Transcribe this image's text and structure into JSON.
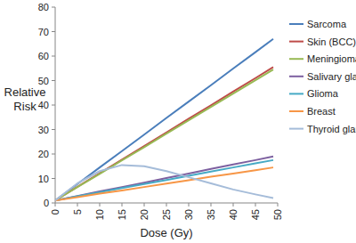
{
  "chart_data": {
    "type": "line",
    "x_label": "Dose (Gy)",
    "y_label": "Relative Risk",
    "x": [
      0,
      5,
      10,
      15,
      20,
      25,
      30,
      35,
      40,
      45,
      49
    ],
    "xlim": [
      0,
      50
    ],
    "xticks": [
      0,
      5,
      10,
      15,
      20,
      25,
      30,
      35,
      40,
      45,
      50
    ],
    "ylim": [
      0,
      80
    ],
    "yticks": [
      0,
      10,
      20,
      30,
      40,
      50,
      60,
      70,
      80
    ],
    "grid": false,
    "legend": "right",
    "series": [
      {
        "name": "Sarcoma",
        "color": "#4a7ebb",
        "values": [
          1,
          7.7,
          14.5,
          21.2,
          27.9,
          34.7,
          41.4,
          48.1,
          54.9,
          61.6,
          67
        ]
      },
      {
        "name": "Skin (BCC)",
        "color": "#be4b48",
        "values": [
          1,
          6.6,
          12.1,
          17.7,
          23.2,
          28.8,
          34.4,
          39.9,
          45.5,
          51,
          55.5
        ]
      },
      {
        "name": "Meningioma",
        "color": "#98b954",
        "values": [
          1,
          6.5,
          11.9,
          17.4,
          22.8,
          28.3,
          33.8,
          39.2,
          44.7,
          50.1,
          54.5
        ]
      },
      {
        "name": "Salivary gland",
        "color": "#7d60a0",
        "values": [
          1,
          2.8,
          4.7,
          6.5,
          8.3,
          10.2,
          12,
          13.9,
          15.7,
          17.5,
          19
        ]
      },
      {
        "name": "Glioma",
        "color": "#46aac5",
        "values": [
          1,
          2.7,
          4.4,
          6.1,
          7.7,
          9.4,
          11.1,
          12.8,
          14.5,
          16.2,
          17.5
        ]
      },
      {
        "name": "Breast",
        "color": "#f79646",
        "values": [
          1,
          2.4,
          3.8,
          5.1,
          6.5,
          7.9,
          9.3,
          10.7,
          12,
          13.4,
          14.5
        ]
      },
      {
        "name": "Thyroid gland",
        "color": "#a5bcd9",
        "values": [
          1,
          8,
          13,
          15.5,
          15,
          13,
          10.5,
          8,
          5.5,
          3.5,
          2
        ]
      }
    ]
  }
}
